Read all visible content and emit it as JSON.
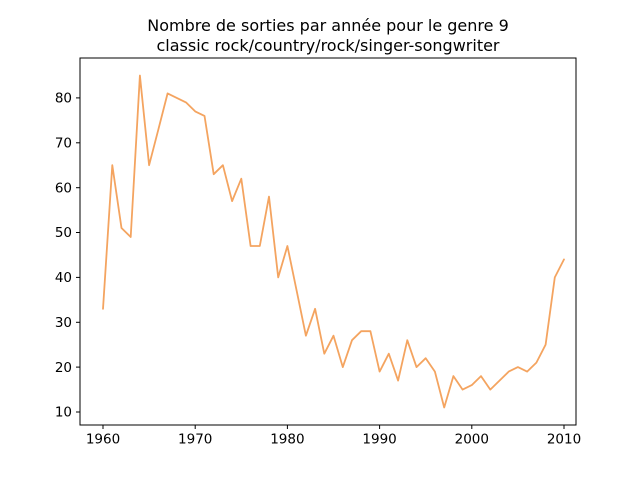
{
  "figure": {
    "title_line1": "Nombre de sorties par année pour le genre 9",
    "title_line2": "classic rock/country/rock/singer-songwriter"
  },
  "chart_data": {
    "type": "line",
    "title": "Nombre de sorties par année pour le genre 9\nclassic rock/country/rock/singer-songwriter",
    "xlabel": "",
    "ylabel": "",
    "x": [
      1960,
      1961,
      1962,
      1963,
      1964,
      1965,
      1966,
      1967,
      1968,
      1969,
      1970,
      1971,
      1972,
      1973,
      1974,
      1975,
      1976,
      1977,
      1978,
      1979,
      1980,
      1981,
      1982,
      1983,
      1984,
      1985,
      1986,
      1987,
      1988,
      1989,
      1990,
      1991,
      1992,
      1993,
      1994,
      1995,
      1996,
      1997,
      1998,
      1999,
      2000,
      2001,
      2002,
      2003,
      2004,
      2005,
      2006,
      2007,
      2008,
      2009,
      2010
    ],
    "values": [
      33,
      65,
      51,
      49,
      85,
      65,
      73,
      81,
      80,
      79,
      77,
      76,
      63,
      65,
      57,
      62,
      47,
      47,
      58,
      40,
      47,
      37,
      27,
      33,
      23,
      27,
      20,
      26,
      28,
      28,
      19,
      23,
      17,
      26,
      20,
      22,
      19,
      11,
      18,
      15,
      16,
      18,
      15,
      17,
      19,
      20,
      19,
      21,
      25,
      40,
      44
    ],
    "xticks": [
      1960,
      1970,
      1980,
      1990,
      2000,
      2010
    ],
    "yticks": [
      10,
      20,
      30,
      40,
      50,
      60,
      70,
      80
    ],
    "xlim": [
      1957.5,
      2011.3
    ],
    "ylim": [
      7.1,
      88.9
    ],
    "grid": false,
    "legend": "none",
    "line_color": "#f4a460",
    "background_color": "#ffffff",
    "spine_color": "#000000"
  }
}
